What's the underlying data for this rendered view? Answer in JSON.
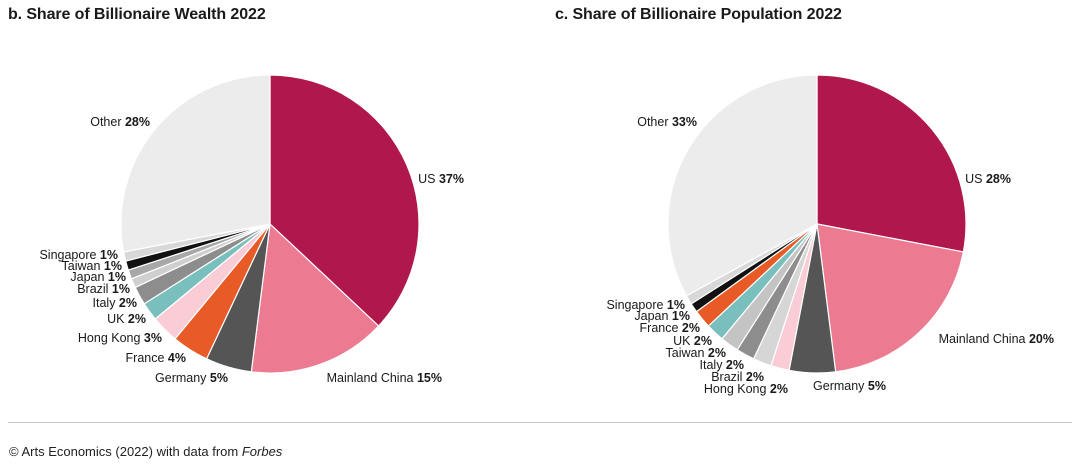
{
  "chart_data": [
    {
      "type": "pie",
      "title": "b. Share of Billionaire Wealth 2022",
      "slices": [
        {
          "label": "US",
          "value": 37,
          "pct_text": "37%",
          "color": "#b0174c"
        },
        {
          "label": "Mainland China",
          "value": 15,
          "pct_text": "15%",
          "color": "#ec7b91"
        },
        {
          "label": "Germany",
          "value": 5,
          "pct_text": "5%",
          "color": "#555555"
        },
        {
          "label": "France",
          "value": 4,
          "pct_text": "4%",
          "color": "#e85a26"
        },
        {
          "label": "Hong Kong",
          "value": 3,
          "pct_text": "3%",
          "color": "#f9ccd6"
        },
        {
          "label": "UK",
          "value": 2,
          "pct_text": "2%",
          "color": "#79bfbd"
        },
        {
          "label": "Italy",
          "value": 2,
          "pct_text": "2%",
          "color": "#8d8d8d"
        },
        {
          "label": "Brazil",
          "value": 1,
          "pct_text": "1%",
          "color": "#cfcfcf"
        },
        {
          "label": "Japan",
          "value": 1,
          "pct_text": "1%",
          "color": "#a8a8a8"
        },
        {
          "label": "Taiwan",
          "value": 1,
          "pct_text": "1%",
          "color": "#111111"
        },
        {
          "label": "Singapore",
          "value": 1,
          "pct_text": "1%",
          "color": "#d8d8d8"
        },
        {
          "label": "Other",
          "value": 28,
          "pct_text": "28%",
          "color": "#ececec"
        }
      ]
    },
    {
      "type": "pie",
      "title": "c. Share of Billionaire Population 2022",
      "slices": [
        {
          "label": "US",
          "value": 28,
          "pct_text": "28%",
          "color": "#b0174c"
        },
        {
          "label": "Mainland China",
          "value": 20,
          "pct_text": "20%",
          "color": "#ec7b91"
        },
        {
          "label": "Germany",
          "value": 5,
          "pct_text": "5%",
          "color": "#555555"
        },
        {
          "label": "Hong Kong",
          "value": 2,
          "pct_text": "2%",
          "color": "#f9ccd6"
        },
        {
          "label": "Brazil",
          "value": 2,
          "pct_text": "2%",
          "color": "#d6d6d6"
        },
        {
          "label": "Italy",
          "value": 2,
          "pct_text": "2%",
          "color": "#8d8d8d"
        },
        {
          "label": "Taiwan",
          "value": 2,
          "pct_text": "2%",
          "color": "#c4c4c4"
        },
        {
          "label": "UK",
          "value": 2,
          "pct_text": "2%",
          "color": "#79bfbd"
        },
        {
          "label": "France",
          "value": 2,
          "pct_text": "2%",
          "color": "#e85a26"
        },
        {
          "label": "Japan",
          "value": 1,
          "pct_text": "1%",
          "color": "#111111"
        },
        {
          "label": "Singapore",
          "value": 1,
          "pct_text": "1%",
          "color": "#d8d8d8"
        },
        {
          "label": "Other",
          "value": 33,
          "pct_text": "33%",
          "color": "#ececec"
        }
      ]
    }
  ],
  "source": {
    "prefix": "© Arts Economics (2022) with data from ",
    "italic": "Forbes"
  }
}
